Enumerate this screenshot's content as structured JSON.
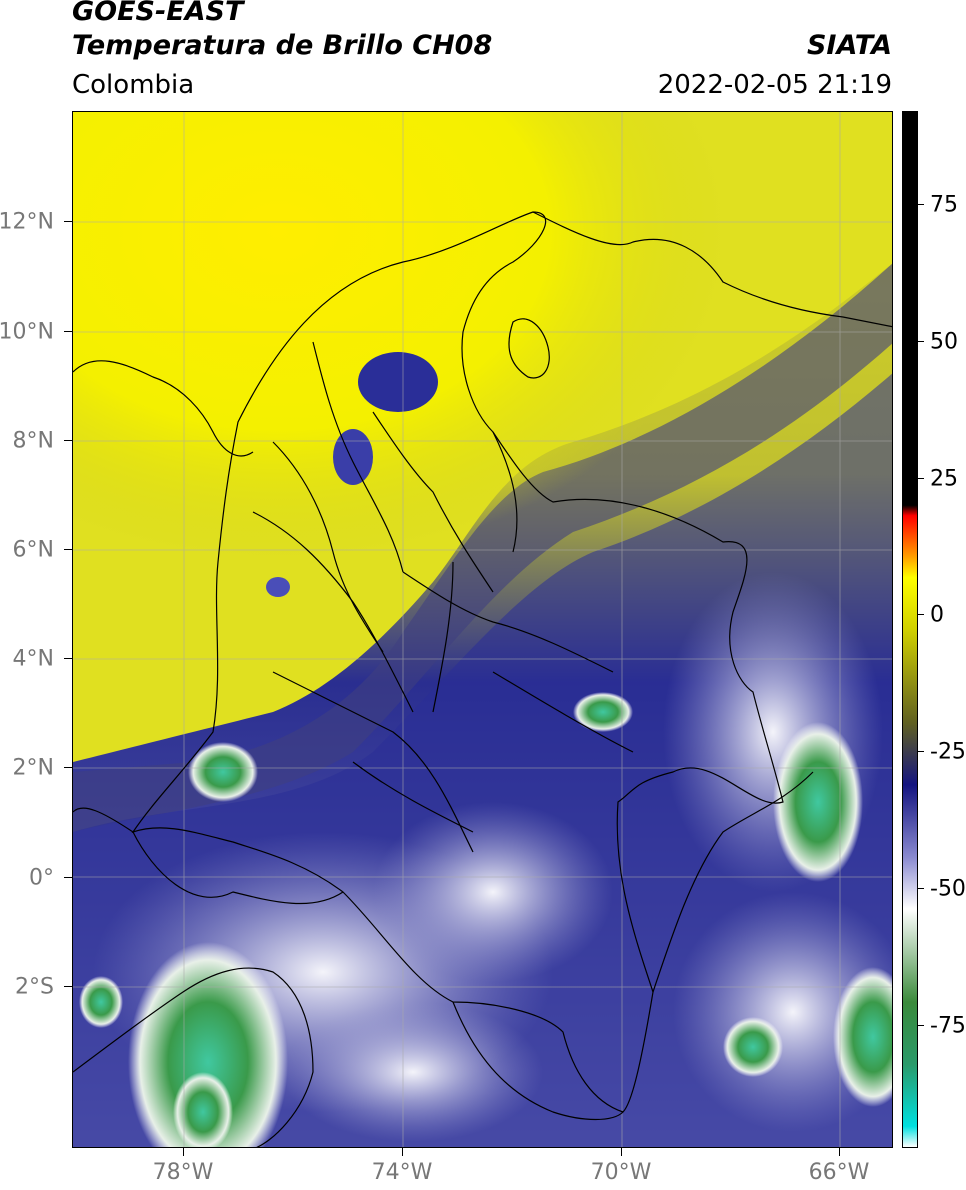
{
  "header": {
    "satellite": "GOES-EAST",
    "product": "Temperatura de Brillo CH08",
    "brand": "SIATA",
    "region": "Colombia",
    "datetime": "2022-02-05 21:19"
  },
  "map": {
    "lat_labels": [
      "12°N",
      "10°N",
      "8°N",
      "6°N",
      "4°N",
      "2°N",
      "0°",
      "2°S"
    ],
    "lon_labels": [
      "78°W",
      "74°W",
      "70°W",
      "66°W"
    ],
    "colors": {
      "warm_dry": "#ffff00",
      "olive": "#8a8a3a",
      "deep_blue": "#1a1f8a",
      "lavender": "#8e90c8",
      "cloud_white": "#f2f2f8",
      "cold_green": "#3a8a3a",
      "coldest_teal": "#40c8a8",
      "boundary": "#000000"
    }
  },
  "colorbar": {
    "ticks": [
      "75",
      "50",
      "25",
      "0",
      "-25",
      "-50",
      "-75"
    ],
    "stops": [
      "#ffffff",
      "#00e0e0",
      "#2a9a6a",
      "#3a8a3a",
      "#ffffff",
      "#8a8ad0",
      "#141480",
      "#606020",
      "#d0d000",
      "#ffff00",
      "#ffa000",
      "#ff0000",
      "#000000",
      "#000000"
    ]
  }
}
